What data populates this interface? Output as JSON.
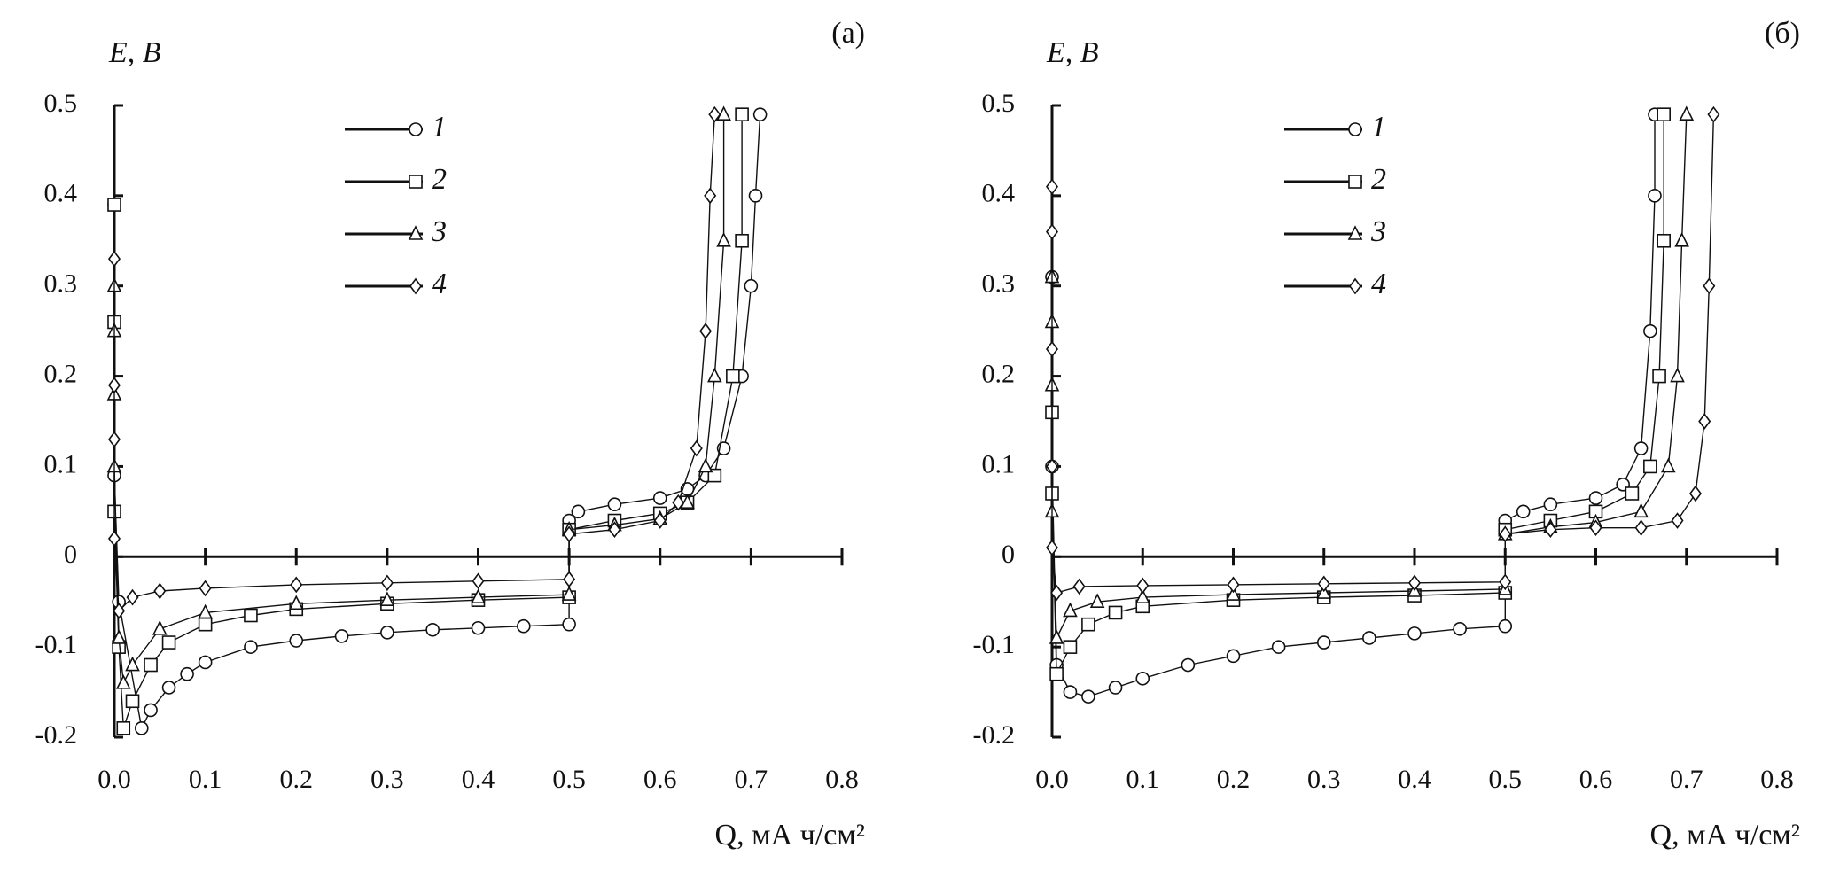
{
  "chart_data": [
    {
      "type": "line",
      "panel_label": "(а)",
      "ylabel": "E, В",
      "xlabel": "Q, мА ч/см²",
      "xlim": [
        0,
        0.8
      ],
      "ylim": [
        -0.2,
        0.5
      ],
      "xticks": [
        {
          "value": 0,
          "label": "0.0"
        },
        0.1,
        0.2,
        0.3,
        0.4,
        0.5,
        0.6,
        0.7,
        0.8
      ],
      "yticks": [
        -0.2,
        -0.1,
        0,
        0.1,
        0.2,
        0.3,
        0.4,
        0.5
      ],
      "color": "#111111",
      "series": [
        {
          "name": "1",
          "marker": "circle",
          "x": [
            0,
            0,
            0.005,
            0.03,
            0.04,
            0.06,
            0.08,
            0.1,
            0.15,
            0.2,
            0.25,
            0.3,
            0.35,
            0.4,
            0.45,
            0.5,
            0.5,
            0.51,
            0.55,
            0.6,
            0.63,
            0.65,
            0.67,
            0.69,
            0.7,
            0.705,
            0.71
          ],
          "values": [
            0.39,
            0.09,
            -0.05,
            -0.19,
            -0.17,
            -0.145,
            -0.13,
            -0.117,
            -0.1,
            -0.093,
            -0.088,
            -0.084,
            -0.081,
            -0.079,
            -0.077,
            -0.075,
            0.04,
            0.05,
            0.058,
            0.065,
            0.075,
            0.09,
            0.12,
            0.2,
            0.3,
            0.4,
            0.49
          ]
        },
        {
          "name": "2",
          "marker": "square",
          "x": [
            0,
            0,
            0,
            0.005,
            0.01,
            0.02,
            0.04,
            0.06,
            0.1,
            0.15,
            0.2,
            0.3,
            0.4,
            0.5,
            0.5,
            0.55,
            0.6,
            0.63,
            0.66,
            0.68,
            0.69,
            0.69
          ],
          "values": [
            0.39,
            0.26,
            0.05,
            -0.1,
            -0.19,
            -0.16,
            -0.12,
            -0.095,
            -0.075,
            -0.065,
            -0.058,
            -0.052,
            -0.048,
            -0.045,
            0.03,
            0.04,
            0.048,
            0.06,
            0.09,
            0.2,
            0.35,
            0.49
          ]
        },
        {
          "name": "3",
          "marker": "triangle",
          "x": [
            0,
            0,
            0,
            0,
            0.005,
            0.01,
            0.02,
            0.05,
            0.1,
            0.2,
            0.3,
            0.4,
            0.5,
            0.5,
            0.55,
            0.6,
            0.63,
            0.65,
            0.66,
            0.67,
            0.67
          ],
          "values": [
            0.3,
            0.25,
            0.18,
            0.1,
            -0.09,
            -0.14,
            -0.12,
            -0.08,
            -0.062,
            -0.052,
            -0.048,
            -0.045,
            -0.042,
            0.03,
            0.035,
            0.042,
            0.06,
            0.1,
            0.2,
            0.35,
            0.49
          ]
        },
        {
          "name": "4",
          "marker": "diamond",
          "x": [
            0,
            0,
            0,
            0,
            0.005,
            0.02,
            0.05,
            0.1,
            0.2,
            0.3,
            0.4,
            0.5,
            0.5,
            0.55,
            0.6,
            0.62,
            0.64,
            0.65,
            0.655,
            0.66
          ],
          "values": [
            0.33,
            0.19,
            0.13,
            0.02,
            -0.06,
            -0.045,
            -0.038,
            -0.035,
            -0.031,
            -0.029,
            -0.027,
            -0.025,
            0.025,
            0.03,
            0.04,
            0.06,
            0.12,
            0.25,
            0.4,
            0.49
          ]
        }
      ]
    },
    {
      "type": "line",
      "panel_label": "(б)",
      "ylabel": "E, В",
      "xlabel": "Q, мА ч/см²",
      "xlim": [
        0,
        0.8
      ],
      "ylim": [
        -0.2,
        0.5
      ],
      "xticks": [
        {
          "value": 0,
          "label": "0.0"
        },
        0.1,
        0.2,
        0.3,
        0.4,
        0.5,
        0.6,
        0.7,
        0.8
      ],
      "yticks": [
        -0.2,
        -0.1,
        0,
        0.1,
        0.2,
        0.3,
        0.4,
        0.5
      ],
      "color": "#111111",
      "series": [
        {
          "name": "1",
          "marker": "circle",
          "x": [
            0,
            0,
            0.005,
            0.02,
            0.04,
            0.07,
            0.1,
            0.15,
            0.2,
            0.25,
            0.3,
            0.35,
            0.4,
            0.45,
            0.5,
            0.5,
            0.52,
            0.55,
            0.6,
            0.63,
            0.65,
            0.66,
            0.665,
            0.665
          ],
          "values": [
            0.31,
            0.1,
            -0.12,
            -0.15,
            -0.155,
            -0.145,
            -0.135,
            -0.12,
            -0.11,
            -0.1,
            -0.095,
            -0.09,
            -0.085,
            -0.08,
            -0.077,
            0.04,
            0.05,
            0.058,
            0.065,
            0.08,
            0.12,
            0.25,
            0.4,
            0.49
          ]
        },
        {
          "name": "2",
          "marker": "square",
          "x": [
            0,
            0,
            0.005,
            0.02,
            0.04,
            0.07,
            0.1,
            0.2,
            0.3,
            0.4,
            0.5,
            0.5,
            0.55,
            0.6,
            0.64,
            0.66,
            0.67,
            0.675,
            0.675
          ],
          "values": [
            0.16,
            0.07,
            -0.13,
            -0.1,
            -0.075,
            -0.062,
            -0.055,
            -0.048,
            -0.045,
            -0.043,
            -0.04,
            0.03,
            0.04,
            0.05,
            0.07,
            0.1,
            0.2,
            0.35,
            0.49
          ]
        },
        {
          "name": "3",
          "marker": "triangle",
          "x": [
            0,
            0,
            0,
            0,
            0.005,
            0.02,
            0.05,
            0.1,
            0.2,
            0.3,
            0.4,
            0.5,
            0.5,
            0.55,
            0.6,
            0.65,
            0.68,
            0.69,
            0.695,
            0.7
          ],
          "values": [
            0.31,
            0.26,
            0.19,
            0.05,
            -0.09,
            -0.06,
            -0.05,
            -0.045,
            -0.042,
            -0.04,
            -0.038,
            -0.036,
            0.025,
            0.033,
            0.038,
            0.05,
            0.1,
            0.2,
            0.35,
            0.49
          ]
        },
        {
          "name": "4",
          "marker": "diamond",
          "x": [
            0,
            0,
            0,
            0,
            0,
            0.005,
            0.03,
            0.1,
            0.2,
            0.3,
            0.4,
            0.5,
            0.5,
            0.55,
            0.6,
            0.65,
            0.69,
            0.71,
            0.72,
            0.725,
            0.73
          ],
          "values": [
            0.41,
            0.36,
            0.23,
            0.1,
            0.01,
            -0.04,
            -0.033,
            -0.032,
            -0.031,
            -0.03,
            -0.029,
            -0.028,
            0.025,
            0.03,
            0.032,
            0.032,
            0.04,
            0.07,
            0.15,
            0.3,
            0.49
          ]
        }
      ]
    }
  ]
}
